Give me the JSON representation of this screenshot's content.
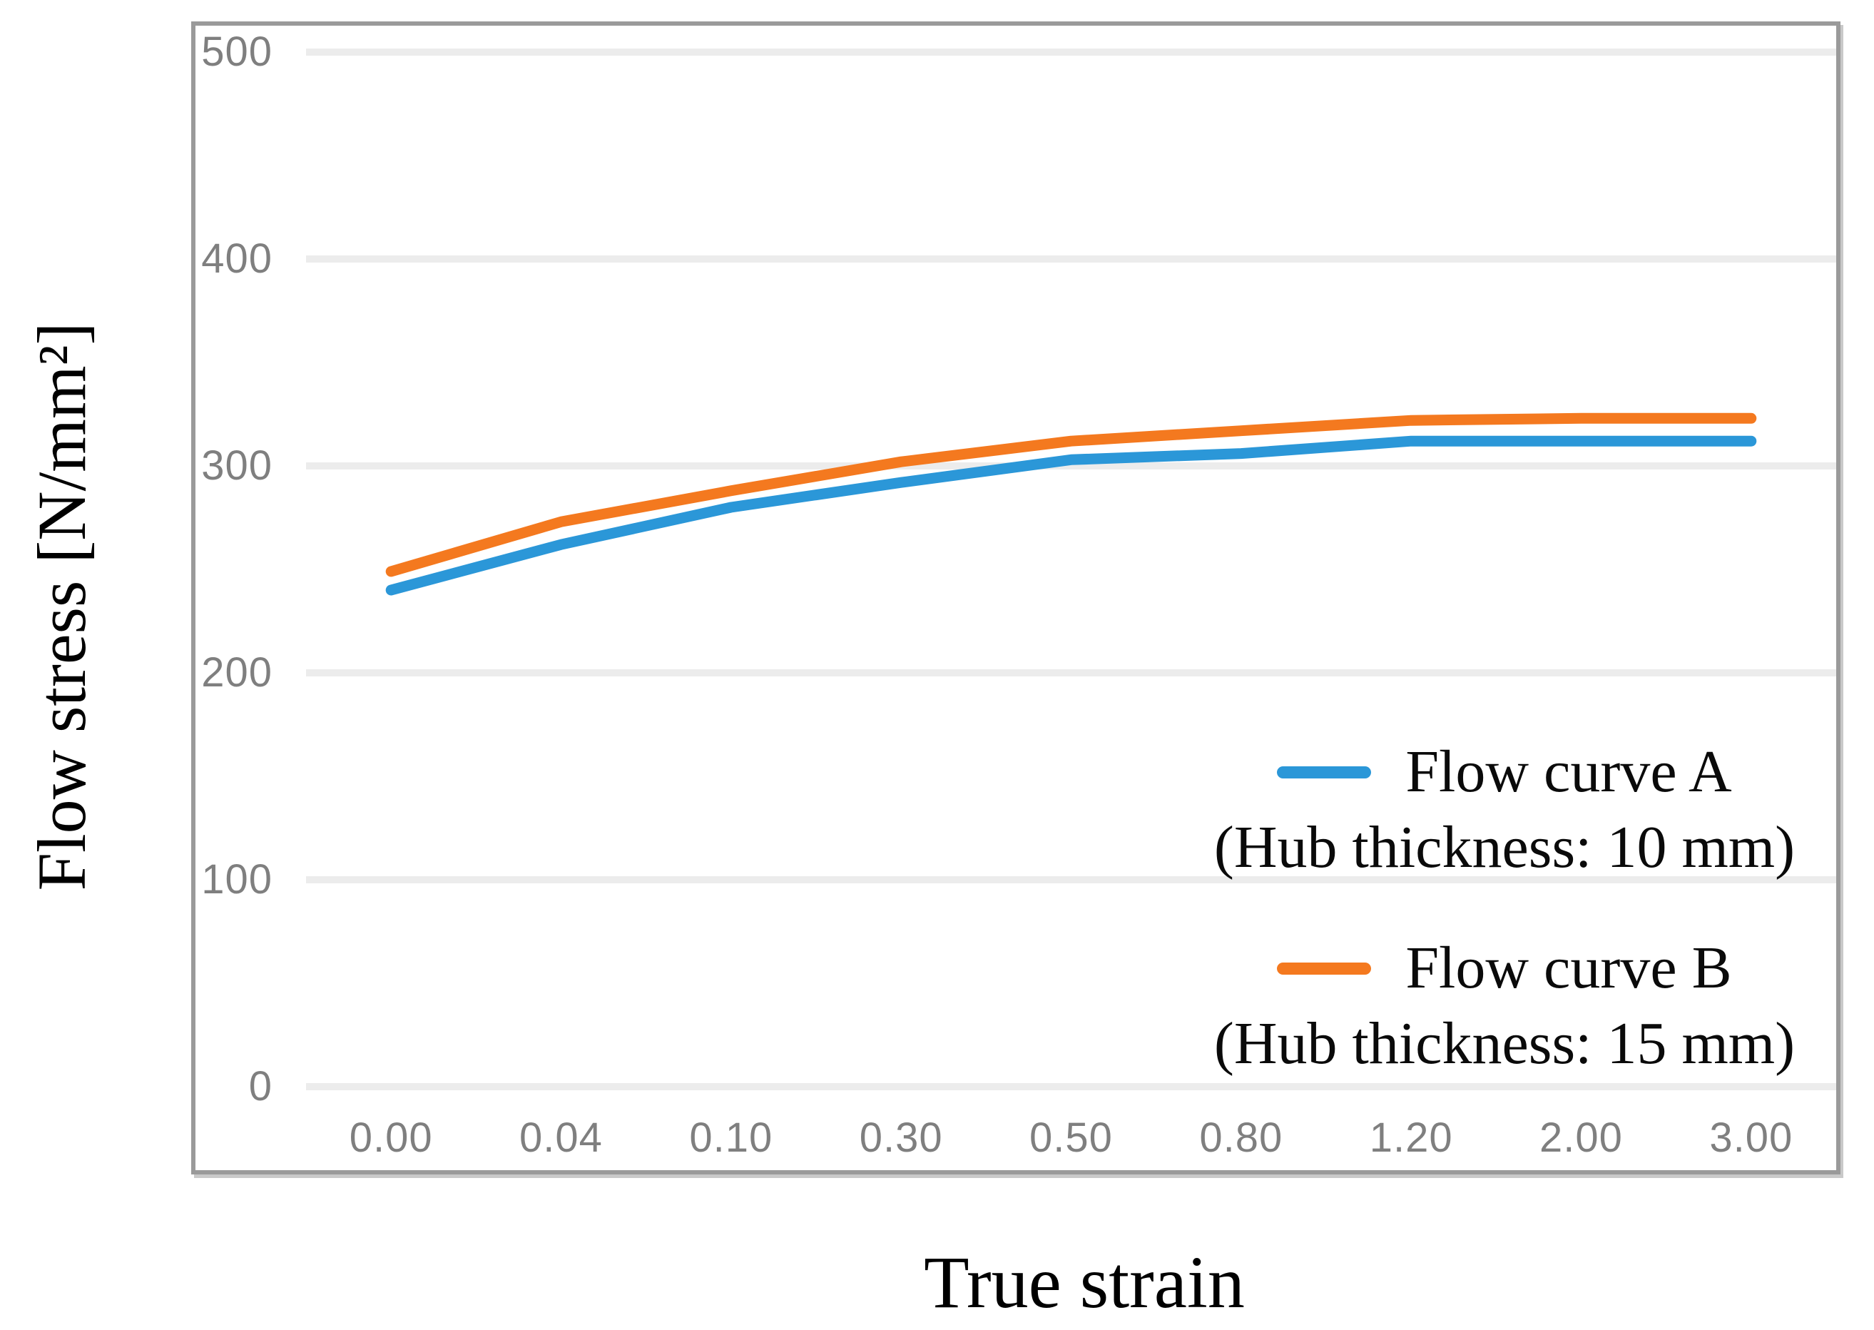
{
  "chart_data": {
    "type": "line",
    "title": "",
    "xlabel": "True strain",
    "ylabel": "Flow stress [N/mm²]",
    "x_axis_type": "categorical",
    "categories": [
      "0.00",
      "0.04",
      "0.10",
      "0.30",
      "0.50",
      "0.80",
      "1.20",
      "2.00",
      "3.00"
    ],
    "y_ticks": [
      500,
      400,
      300,
      200,
      100,
      0
    ],
    "ylim": [
      0,
      500
    ],
    "grid": "horizontal-only",
    "legend_position": "inside-lower-right",
    "series": [
      {
        "name": "Flow curve A",
        "subtitle": "(Hub thickness: 10 mm)",
        "color": "#2B97D8",
        "values": [
          240,
          262,
          280,
          292,
          303,
          306,
          312,
          312,
          312
        ]
      },
      {
        "name": "Flow curve B",
        "subtitle": "(Hub thickness: 15 mm)",
        "color": "#F4791F",
        "values": [
          249,
          273,
          288,
          302,
          312,
          317,
          322,
          323,
          323
        ]
      }
    ]
  },
  "colors": {
    "gridline": "#ececec",
    "frame_border": "#9a9a9a",
    "tick_text": "#7f7f7f",
    "series_a": "#2B97D8",
    "series_b": "#F4791F"
  }
}
